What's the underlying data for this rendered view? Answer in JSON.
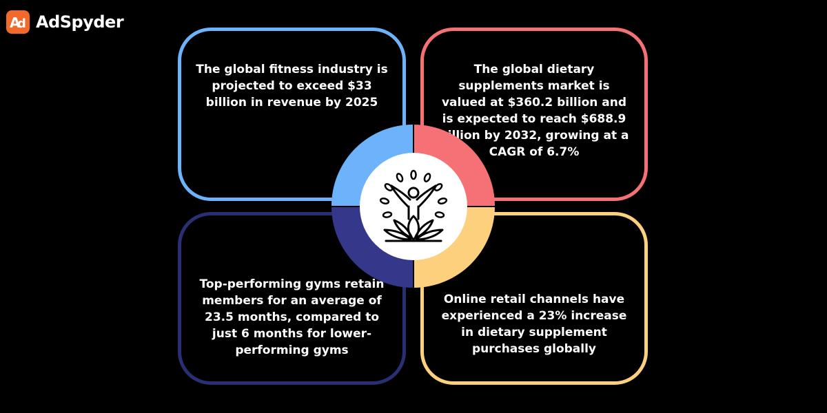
{
  "brand": {
    "name": "AdSpyder",
    "logo_icon": "adspyder-logo-icon",
    "color": "#f26a2b"
  },
  "cards": {
    "top_left": {
      "text": "The global fitness industry is projected to exceed $33 billion in revenue by 2025",
      "color": "#6cb3fb"
    },
    "top_right": {
      "text": "The global dietary supplements market is valued at $360.2 billion and is expected to reach $688.9 billion by 2032, growing at a CAGR of 6.7%",
      "color": "#f67176"
    },
    "bottom_left": {
      "text": "Top-performing gyms retain members for an average of 23.5 months, compared to just 6 months for lower-performing gyms",
      "color": "#2a2e72"
    },
    "bottom_right": {
      "text": "Online retail channels have experienced a 23% increase in dietary supplement purchases globally",
      "color": "#fdd07e"
    }
  },
  "center": {
    "icon": "lotus-wellness-icon"
  }
}
